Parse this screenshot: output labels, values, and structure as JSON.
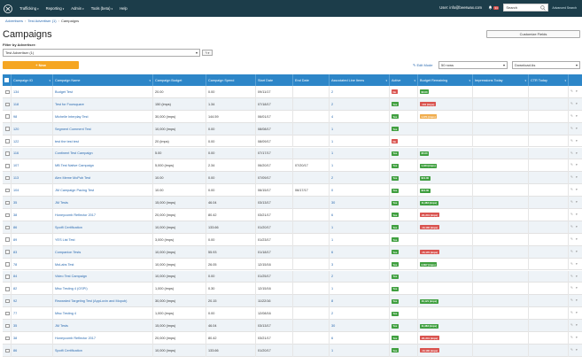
{
  "nav": {
    "items": [
      "Trafficking",
      "Reporting",
      "Admin",
      "Tools (beta)",
      "Help"
    ],
    "user": "User: info@beeswax.com",
    "notifications": "34",
    "search_placeholder": "Search",
    "advanced_search": "Advanced Search"
  },
  "breadcrumb": [
    "Advertisers",
    "Test Advertiser (1)",
    "Campaigns"
  ],
  "page": {
    "title": "Campaigns",
    "customize": "Customize Fields",
    "filter_label": "Filter by Advertiser:",
    "filter_value": "Test Advertiser (1)",
    "new_label": "+ New",
    "edit_mode": "Edit Mode",
    "rows": "50 rows",
    "download": "Download As"
  },
  "columns": [
    "Campaign ID",
    "Campaign Name",
    "Campaign Budget",
    "Campaign Spend",
    "Start Date",
    "End Date",
    "Associated Line Items",
    "Active",
    "Budget Remaining",
    "Impressions Today",
    "CTR Today"
  ],
  "rows": [
    {
      "id": "134",
      "name": "Budget Test",
      "budget": "20.00",
      "spend": "0.00",
      "start": "09/11/17",
      "end": "",
      "items": "2",
      "active": "No",
      "remaining": "$0.00",
      "rclass": "green"
    },
    {
      "id": "118",
      "name": "Test for Foursquare",
      "budget": "150 (imps)",
      "spend": "1.34",
      "start": "07/18/17",
      "end": "",
      "items": "2",
      "active": "Yes",
      "remaining": "-131 (imps)",
      "rclass": "red"
    },
    {
      "id": "98",
      "name": "Michelle Interplay Test",
      "budget": "30,000 (imps)",
      "spend": "144.59",
      "start": "06/01/17",
      "end": "",
      "items": "4",
      "active": "Yes",
      "remaining": "1,371 (imps)",
      "rclass": "orange"
    },
    {
      "id": "120",
      "name": "Segment Comment Test",
      "budget": "10,000 (imps)",
      "spend": "0.00",
      "start": "08/08/17",
      "end": "",
      "items": "1",
      "active": "Yes",
      "remaining": "",
      "rclass": ""
    },
    {
      "id": "122",
      "name": "test the test test",
      "budget": "20 (imps)",
      "spend": "0.00",
      "start": "08/09/17",
      "end": "",
      "items": "1",
      "active": "No",
      "remaining": "",
      "rclass": ""
    },
    {
      "id": "116",
      "name": "Continent Test Campaign",
      "budget": "5.00",
      "spend": "0.00",
      "start": "07/17/17",
      "end": "",
      "items": "1",
      "active": "Yes",
      "remaining": "$5.00",
      "rclass": "green"
    },
    {
      "id": "107",
      "name": "MB Test Native Campaign",
      "budget": "5,000 (imps)",
      "spend": "2.34",
      "start": "06/20/17",
      "end": "07/20/17",
      "items": "1",
      "active": "Yes",
      "remaining": "1,434 (imps)",
      "rclass": "green"
    },
    {
      "id": "113",
      "name": "Alex Meme MoPub Test",
      "budget": "10.00",
      "spend": "0.00",
      "start": "07/09/17",
      "end": "",
      "items": "2",
      "active": "Yes",
      "remaining": "$10.00",
      "rclass": "green"
    },
    {
      "id": "104",
      "name": "JM Campaign Pacing Test",
      "budget": "10.00",
      "spend": "0.00",
      "start": "06/15/17",
      "end": "06/17/17",
      "items": "0",
      "active": "Yes",
      "remaining": "$10.00",
      "rclass": "green"
    },
    {
      "id": "35",
      "name": "JM Tests",
      "budget": "15,000 (imps)",
      "spend": "46.04",
      "start": "03/13/17",
      "end": "",
      "items": "30",
      "active": "Yes",
      "remaining": "11,383 (imps)",
      "rclass": "green"
    },
    {
      "id": "38",
      "name": "Honeycomb Reflector 2017",
      "budget": "20,000 (imps)",
      "spend": "80.42",
      "start": "03/21/17",
      "end": "",
      "items": "6",
      "active": "Yes",
      "remaining": "-81,241 (imps)",
      "rclass": "red"
    },
    {
      "id": "86",
      "name": "Spotfi Certification",
      "budget": "10,000 (imps)",
      "spend": "133.66",
      "start": "01/20/17",
      "end": "",
      "items": "1",
      "active": "Yes",
      "remaining": "-10,130 (imps)",
      "rclass": "red"
    },
    {
      "id": "89",
      "name": "YES List Test",
      "budget": "3,000 (imps)",
      "spend": "0.00",
      "start": "01/23/17",
      "end": "",
      "items": "1",
      "active": "Yes",
      "remaining": "",
      "rclass": ""
    },
    {
      "id": "83",
      "name": "Companion Tests",
      "budget": "10,000 (imps)",
      "spend": "55.93",
      "start": "01/18/17",
      "end": "",
      "items": "6",
      "active": "Yes",
      "remaining": "-15,170 (imps)",
      "rclass": "red"
    },
    {
      "id": "78",
      "name": "MoLabs Test",
      "budget": "10,000 (imps)",
      "spend": "26.05",
      "start": "12/15/16",
      "end": "",
      "items": "3",
      "active": "Yes",
      "remaining": "3,697 (imps)",
      "rclass": "green"
    },
    {
      "id": "84",
      "name": "Video Test Campaign",
      "budget": "10,000 (imps)",
      "spend": "0.00",
      "start": "01/25/17",
      "end": "",
      "items": "2",
      "active": "Yes",
      "remaining": "",
      "rclass": ""
    },
    {
      "id": "82",
      "name": "Misc Testing 4 (OSPI)",
      "budget": "1,000 (imps)",
      "spend": "0.30",
      "start": "12/15/16",
      "end": "",
      "items": "1",
      "active": "Yes",
      "remaining": "",
      "rclass": ""
    },
    {
      "id": "92",
      "name": "Rewarded Targeting Test (AppLovin and Mopub)",
      "budget": "30,000 (imps)",
      "spend": "20.15",
      "start": "11/22/16",
      "end": "",
      "items": "8",
      "active": "Yes",
      "remaining": "16,121 (imps)",
      "rclass": "green"
    },
    {
      "id": "77",
      "name": "Misc Testing 4",
      "budget": "1,000 (imps)",
      "spend": "0.00",
      "start": "12/08/16",
      "end": "",
      "items": "2",
      "active": "Yes",
      "remaining": "",
      "rclass": ""
    },
    {
      "id": "35",
      "name": "JM Tests",
      "budget": "15,000 (imps)",
      "spend": "46.04",
      "start": "03/13/17",
      "end": "",
      "items": "30",
      "active": "Yes",
      "remaining": "11,383 (imps)",
      "rclass": "green"
    },
    {
      "id": "38",
      "name": "Honeycomb Reflector 2017",
      "budget": "20,000 (imps)",
      "spend": "80.42",
      "start": "03/21/17",
      "end": "",
      "items": "6",
      "active": "Yes",
      "remaining": "-81,241 (imps)",
      "rclass": "red"
    },
    {
      "id": "86",
      "name": "Spotfi Certification",
      "budget": "10,000 (imps)",
      "spend": "133.66",
      "start": "01/20/17",
      "end": "",
      "items": "1",
      "active": "Yes",
      "remaining": "-10,130 (imps)",
      "rclass": "red"
    }
  ]
}
